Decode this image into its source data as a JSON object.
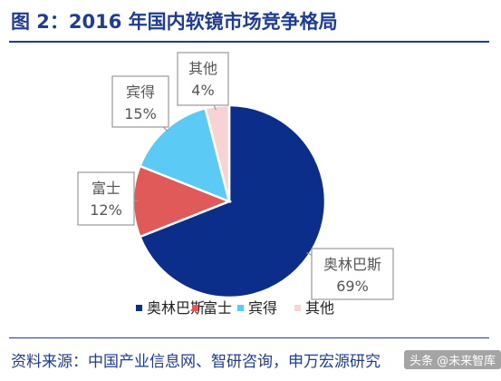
{
  "header": {
    "title": "图 2：2016 年国内软镜市场竞争格局"
  },
  "footer": {
    "source": "资料来源：中国产业信息网、智研咨询，申万宏源研究"
  },
  "watermark": {
    "text": "头条 @未来智库"
  },
  "chart_data": {
    "type": "pie",
    "title": "",
    "categories": [
      "奥林巴斯",
      "富士",
      "宾得",
      "其他"
    ],
    "values": [
      69,
      12,
      15,
      4
    ],
    "labels": [
      "69%",
      "12%",
      "15%",
      "4%"
    ],
    "colors": [
      "#0A2E8A",
      "#E05A5A",
      "#5BCBF5",
      "#F8D3D3"
    ],
    "legend": "bottom",
    "start_angle_deg": 0,
    "direction": "clockwise"
  }
}
